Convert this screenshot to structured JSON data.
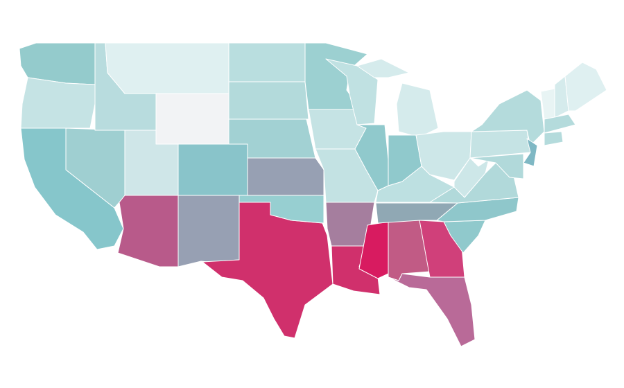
{
  "map": {
    "regions": [
      {
        "color": "#94cbcc"
      },
      {
        "color": "#c5e3e4"
      },
      {
        "color": "#86c6cb"
      },
      {
        "color": "#9fcfd1"
      },
      {
        "color": "#b8dcde"
      },
      {
        "color": "#dff0f1"
      },
      {
        "color": "#f2f3f5"
      },
      {
        "color": "#cfe6e8"
      },
      {
        "color": "#b85a8a"
      },
      {
        "color": "#89c4ca"
      },
      {
        "color": "#97a0b3"
      },
      {
        "color": "#d0306c"
      },
      {
        "color": "#97cfd1"
      },
      {
        "color": "#97a0b3"
      },
      {
        "color": "#a2d1d3"
      },
      {
        "color": "#b3dadb"
      },
      {
        "color": "#b9dedf"
      },
      {
        "color": "#9cd0d1"
      },
      {
        "color": "#c5e3e4"
      },
      {
        "color": "#c3e2e3"
      },
      {
        "color": "#a57e9e"
      },
      {
        "color": "#d0306c"
      },
      {
        "color": "#d81b60"
      },
      {
        "color": "#c15b85"
      },
      {
        "color": "#d0407a"
      },
      {
        "color": "#b96a98"
      },
      {
        "color": "#90c9cc"
      },
      {
        "color": "#8fc7cb"
      },
      {
        "color": "#90a8b4"
      },
      {
        "color": "#bde0e1"
      },
      {
        "color": "#90c9cc"
      },
      {
        "color": "#c0e1e2"
      },
      {
        "color": "#d5ebec"
      },
      {
        "color": "#d5ebec"
      },
      {
        "color": "#90c9cc"
      },
      {
        "color": "#cde7e8"
      },
      {
        "color": "#cde7e8"
      },
      {
        "color": "#b1d9da"
      },
      {
        "color": "#c5e3e4"
      },
      {
        "color": "#b4dbdc"
      },
      {
        "color": "#7fb8c4"
      },
      {
        "color": "#b1d9da"
      },
      {
        "color": "#e8f4f4"
      },
      {
        "color": "#d5ebec"
      },
      {
        "color": "#dff0f1"
      },
      {
        "color": "#b4dbdc"
      },
      {
        "color": "#b4dbdc"
      }
    ]
  }
}
